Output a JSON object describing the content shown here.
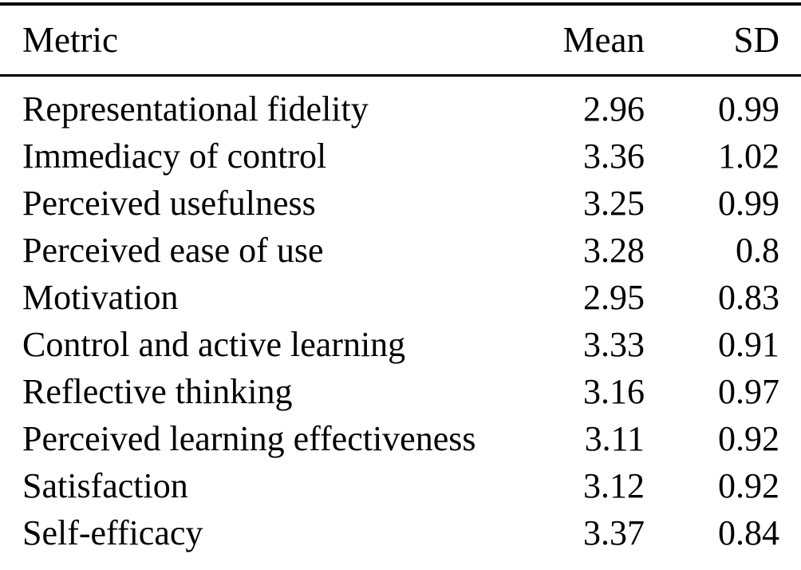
{
  "page": {
    "background_color": "#ffffff",
    "text_color": "#000000",
    "rule_color": "#000000"
  },
  "table": {
    "headers": {
      "metric": "Metric",
      "mean": "Mean",
      "sd": "SD"
    },
    "rows": [
      {
        "metric": "Representational fidelity",
        "mean": "2.96",
        "sd": "0.99"
      },
      {
        "metric": "Immediacy of control",
        "mean": "3.36",
        "sd": "1.02"
      },
      {
        "metric": "Perceived usefulness",
        "mean": "3.25",
        "sd": "0.99"
      },
      {
        "metric": "Perceived ease of use",
        "mean": "3.28",
        "sd": "0.8"
      },
      {
        "metric": "Motivation",
        "mean": "2.95",
        "sd": "0.83"
      },
      {
        "metric": "Control and active learning",
        "mean": "3.33",
        "sd": "0.91"
      },
      {
        "metric": "Reflective thinking",
        "mean": "3.16",
        "sd": "0.97"
      },
      {
        "metric": "Perceived learning effectiveness",
        "mean": "3.11",
        "sd": "0.92"
      },
      {
        "metric": "Satisfaction",
        "mean": "3.12",
        "sd": "0.92"
      },
      {
        "metric": "Self-efficacy",
        "mean": "3.37",
        "sd": "0.84"
      }
    ]
  },
  "chart_data": {
    "type": "table",
    "columns": [
      "Metric",
      "Mean",
      "SD"
    ],
    "rows": [
      [
        "Representational fidelity",
        2.96,
        0.99
      ],
      [
        "Immediacy of control",
        3.36,
        1.02
      ],
      [
        "Perceived usefulness",
        3.25,
        0.99
      ],
      [
        "Perceived ease of use",
        3.28,
        0.8
      ],
      [
        "Motivation",
        2.95,
        0.83
      ],
      [
        "Control and active learning",
        3.33,
        0.91
      ],
      [
        "Reflective thinking",
        3.16,
        0.97
      ],
      [
        "Perceived learning effectiveness",
        3.11,
        0.92
      ],
      [
        "Satisfaction",
        3.12,
        0.92
      ],
      [
        "Self-efficacy",
        3.37,
        0.84
      ]
    ]
  }
}
